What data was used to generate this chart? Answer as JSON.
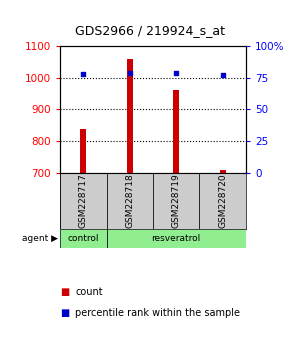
{
  "title": "GDS2966 / 219924_s_at",
  "samples": [
    "GSM228717",
    "GSM228718",
    "GSM228719",
    "GSM228720"
  ],
  "counts": [
    840,
    1060,
    960,
    710
  ],
  "percentile_ranks": [
    78,
    79,
    79,
    77
  ],
  "ylim_left": [
    700,
    1100
  ],
  "ylim_right": [
    0,
    100
  ],
  "yticks_left": [
    700,
    800,
    900,
    1000,
    1100
  ],
  "yticks_right": [
    0,
    25,
    50,
    75,
    100
  ],
  "yticklabels_right": [
    "0",
    "25",
    "50",
    "75",
    "100%"
  ],
  "bar_color": "#cc0000",
  "dot_color": "#0000cc",
  "sample_box_color": "#cccccc",
  "control_color": "#90ee90",
  "resveratrol_color": "#90ee90",
  "legend_count_color": "#cc0000",
  "legend_pct_color": "#0000cc",
  "bar_width": 0.12
}
